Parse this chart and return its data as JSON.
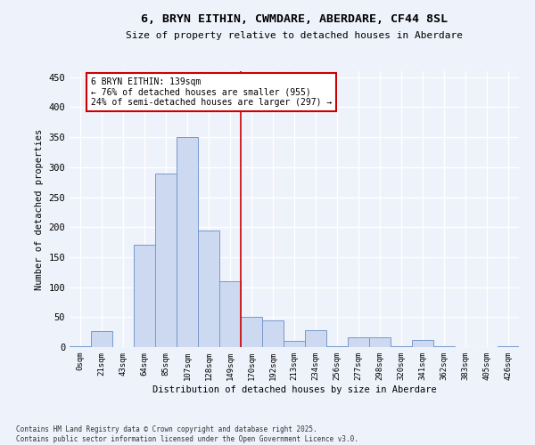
{
  "title": "6, BRYN EITHIN, CWMDARE, ABERDARE, CF44 8SL",
  "subtitle": "Size of property relative to detached houses in Aberdare",
  "xlabel": "Distribution of detached houses by size in Aberdare",
  "ylabel": "Number of detached properties",
  "bar_color": "#ccd9f0",
  "bar_edge_color": "#7799cc",
  "background_color": "#eef2fb",
  "grid_color": "#ffffff",
  "categories": [
    "0sqm",
    "21sqm",
    "43sqm",
    "64sqm",
    "85sqm",
    "107sqm",
    "128sqm",
    "149sqm",
    "170sqm",
    "192sqm",
    "213sqm",
    "234sqm",
    "256sqm",
    "277sqm",
    "298sqm",
    "320sqm",
    "341sqm",
    "362sqm",
    "383sqm",
    "405sqm",
    "426sqm"
  ],
  "values": [
    2,
    27,
    0,
    170,
    290,
    350,
    195,
    110,
    50,
    45,
    10,
    28,
    2,
    17,
    17,
    2,
    12,
    2,
    0,
    0,
    2
  ],
  "ylim": [
    0,
    460
  ],
  "yticks": [
    0,
    50,
    100,
    150,
    200,
    250,
    300,
    350,
    400,
    450
  ],
  "property_line_x": 7.5,
  "annotation_text": "6 BRYN EITHIN: 139sqm\n← 76% of detached houses are smaller (955)\n24% of semi-detached houses are larger (297) →",
  "annotation_box_color": "#ffffff",
  "annotation_box_edge_color": "#cc0000",
  "property_line_color": "#cc0000",
  "footnote": "Contains HM Land Registry data © Crown copyright and database right 2025.\nContains public sector information licensed under the Open Government Licence v3.0."
}
